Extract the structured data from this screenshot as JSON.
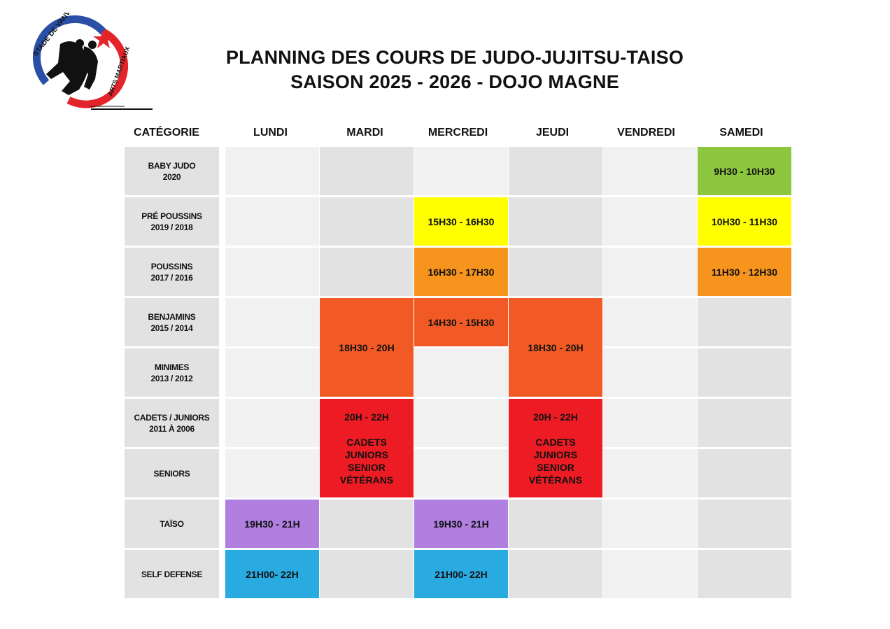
{
  "logo": {
    "name": "stade-de-vanves-logo",
    "text_top": "STADE DE VANVES",
    "text_side": "ARTS MARTIAUX",
    "colors": {
      "blue": "#2a4fa6",
      "red": "#e3242b",
      "black": "#111111"
    }
  },
  "title": {
    "line1": "PLANNING DES COURS DE JUDO-JUJITSU-TAISO",
    "line2": "SAISON 2025 - 2026 - DOJO MAGNE"
  },
  "headers": [
    "CATÉGORIE",
    "LUNDI",
    "MARDI",
    "MERCREDI",
    "JEUDI",
    "VENDREDI",
    "SAMEDI"
  ],
  "categories": [
    {
      "name": "BABY JUDO",
      "years": "2020"
    },
    {
      "name": "PRÉ POUSSINS",
      "years": "2019 / 2018"
    },
    {
      "name": "POUSSINS",
      "years": "2017 / 2016"
    },
    {
      "name": "BENJAMINS",
      "years": "2015 / 2014"
    },
    {
      "name": "MINIMES",
      "years": "2013 / 2012"
    },
    {
      "name": "CADETS / JUNIORS",
      "years": "2011 À 2006"
    },
    {
      "name": "SENIORS",
      "years": ""
    },
    {
      "name": "TAÏSO",
      "years": ""
    },
    {
      "name": "SELF DEFENSE",
      "years": ""
    }
  ],
  "slots": {
    "baby_samedi": "9H30 - 10H30",
    "prepoussins_mercredi": "15H30 - 16H30",
    "prepoussins_samedi": "10H30 - 11H30",
    "poussins_mercredi": "16H30 - 17H30",
    "poussins_samedi": "11H30 - 12H30",
    "benjamins_mercredi": "14H30 - 15H30",
    "benjmin_mardi": "18H30 - 20H",
    "benjmin_jeudi": "18H30 - 20H",
    "adult_mardi": {
      "time": "20H - 22H",
      "groups": [
        "CADETS",
        "JUNIORS",
        "SENIOR",
        "VÉTÉRANS"
      ]
    },
    "adult_jeudi": {
      "time": "20H - 22H",
      "groups": [
        "CADETS",
        "JUNIORS",
        "SENIOR",
        "VÉTÉRANS"
      ]
    },
    "taiso_lundi": "19H30 - 21H",
    "taiso_mercredi": "19H30 - 21H",
    "self_lundi": "21H00- 22H",
    "self_mercredi": "21H00- 22H"
  },
  "colors": {
    "green": "#8dc63f",
    "yellow": "#ffff00",
    "orange": "#f7941d",
    "dark_orange": "#f15a24",
    "red": "#ed1c24",
    "purple": "#b07fe0",
    "blue": "#29abe2",
    "cell_light": "#f1f1f1",
    "cell_dark": "#e2e2e2"
  }
}
